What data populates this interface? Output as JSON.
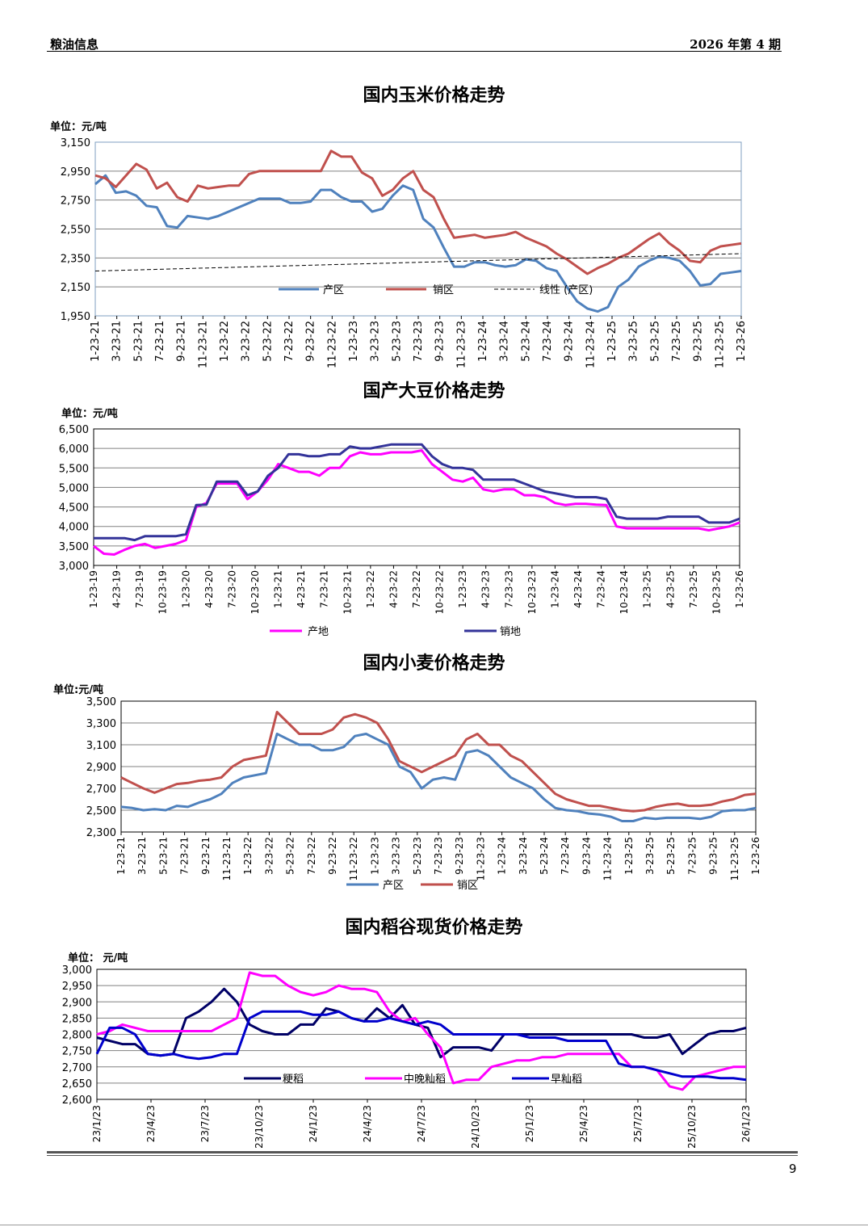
{
  "header": {
    "left": "粮油信息",
    "right": "2026 年第 4 期"
  },
  "page_number": "9",
  "chart_data": [
    {
      "type": "line",
      "title": "国内玉米价格走势",
      "unit": "单位：元/吨",
      "ylim": [
        1950,
        3150
      ],
      "yticks": [
        "3,150",
        "2,950",
        "2,750",
        "2,550",
        "2,350",
        "2,150",
        "1,950"
      ],
      "x_ticks": [
        "1-23-21",
        "3-23-21",
        "5-23-21",
        "7-23-21",
        "9-23-21",
        "11-23-21",
        "1-23-22",
        "3-23-22",
        "5-23-22",
        "7-23-22",
        "9-23-22",
        "11-23-22",
        "1-23-23",
        "3-23-23",
        "5-23-23",
        "7-23-23",
        "9-23-23",
        "11-23-23",
        "1-23-24",
        "3-23-24",
        "5-23-24",
        "7-23-24",
        "9-23-24",
        "11-23-24",
        "1-23-25",
        "3-23-25",
        "5-23-25",
        "7-23-25",
        "9-23-25",
        "11-23-25",
        "1-23-26"
      ],
      "series": [
        {
          "name": "产区",
          "color": "#4f81bd",
          "values": [
            2860,
            2920,
            2800,
            2810,
            2780,
            2710,
            2700,
            2570,
            2560,
            2640,
            2630,
            2620,
            2640,
            2670,
            2700,
            2730,
            2760,
            2760,
            2760,
            2730,
            2730,
            2740,
            2820,
            2820,
            2770,
            2740,
            2740,
            2670,
            2690,
            2780,
            2850,
            2820,
            2620,
            2560,
            2420,
            2290,
            2290,
            2320,
            2320,
            2300,
            2290,
            2300,
            2340,
            2330,
            2280,
            2260,
            2150,
            2050,
            2000,
            1980,
            2010,
            2150,
            2200,
            2290,
            2330,
            2360,
            2350,
            2330,
            2260,
            2160,
            2170,
            2240,
            2250,
            2260
          ]
        },
        {
          "name": "销区",
          "color": "#c0504d",
          "values": [
            2920,
            2900,
            2840,
            2920,
            3000,
            2960,
            2830,
            2870,
            2770,
            2740,
            2850,
            2830,
            2840,
            2850,
            2850,
            2930,
            2950,
            2950,
            2950,
            2950,
            2950,
            2950,
            2950,
            3090,
            3050,
            3050,
            2940,
            2900,
            2780,
            2820,
            2900,
            2950,
            2820,
            2770,
            2620,
            2490,
            2500,
            2510,
            2490,
            2500,
            2510,
            2530,
            2490,
            2460,
            2430,
            2380,
            2340,
            2290,
            2240,
            2280,
            2310,
            2350,
            2380,
            2430,
            2480,
            2520,
            2450,
            2400,
            2330,
            2320,
            2400,
            2430,
            2440,
            2450
          ]
        },
        {
          "name": "线性 (产区)",
          "color": "#000000",
          "dashed": true,
          "values": [
            2260,
            2380
          ]
        }
      ]
    },
    {
      "type": "line",
      "title": "国产大豆价格走势",
      "unit": "单位：元/吨",
      "ylim": [
        3000,
        6500
      ],
      "yticks": [
        "6,500",
        "6,000",
        "5,500",
        "5,000",
        "4,500",
        "4,000",
        "3,500",
        "3,000"
      ],
      "x_ticks": [
        "1-23-19",
        "4-23-19",
        "7-23-19",
        "10-23-19",
        "1-23-20",
        "4-23-20",
        "7-23-20",
        "10-23-20",
        "1-23-21",
        "4-23-21",
        "7-23-21",
        "10-23-21",
        "1-23-22",
        "4-23-22",
        "7-23-22",
        "10-23-22",
        "1-23-23",
        "4-23-23",
        "7-23-23",
        "10-23-23",
        "1-23-24",
        "4-23-24",
        "7-23-24",
        "10-23-24",
        "1-23-25",
        "4-23-25",
        "7-23-25",
        "10-23-25",
        "1-23-26"
      ],
      "series": [
        {
          "name": "产地",
          "color": "#ff00ff",
          "values": [
            3500,
            3300,
            3280,
            3400,
            3500,
            3550,
            3450,
            3500,
            3550,
            3650,
            4500,
            4600,
            5100,
            5100,
            5100,
            4700,
            4900,
            5200,
            5600,
            5500,
            5400,
            5400,
            5300,
            5500,
            5500,
            5800,
            5900,
            5850,
            5850,
            5900,
            5900,
            5900,
            5950,
            5600,
            5400,
            5200,
            5150,
            5250,
            4950,
            4900,
            4950,
            4950,
            4800,
            4800,
            4750,
            4600,
            4550,
            4580,
            4580,
            4560,
            4550,
            4000,
            3950,
            3950,
            3950,
            3950,
            3950,
            3950,
            3950,
            3950,
            3900,
            3950,
            4000,
            4100
          ]
        },
        {
          "name": "销地",
          "color": "#333399",
          "values": [
            3700,
            3700,
            3700,
            3700,
            3650,
            3750,
            3750,
            3750,
            3750,
            3800,
            4550,
            4560,
            5150,
            5150,
            5150,
            4800,
            4900,
            5300,
            5500,
            5850,
            5850,
            5800,
            5800,
            5850,
            5850,
            6050,
            6000,
            6000,
            6050,
            6100,
            6100,
            6100,
            6100,
            5800,
            5600,
            5500,
            5500,
            5450,
            5200,
            5200,
            5200,
            5200,
            5100,
            5000,
            4900,
            4850,
            4800,
            4750,
            4750,
            4750,
            4700,
            4250,
            4200,
            4200,
            4200,
            4200,
            4250,
            4250,
            4250,
            4250,
            4100,
            4100,
            4100,
            4200
          ]
        }
      ]
    },
    {
      "type": "line",
      "title": "国内小麦价格走势",
      "unit": "单位:元/吨",
      "ylim": [
        2300,
        3500
      ],
      "yticks": [
        "3,500",
        "3,300",
        "3,100",
        "2,900",
        "2,700",
        "2,500",
        "2,300"
      ],
      "x_ticks": [
        "1-23-21",
        "3-23-21",
        "5-23-21",
        "7-23-21",
        "9-23-21",
        "11-23-21",
        "1-23-22",
        "3-23-22",
        "5-23-22",
        "7-23-22",
        "9-23-22",
        "11-23-22",
        "1-23-23",
        "3-23-23",
        "5-23-23",
        "7-23-23",
        "9-23-23",
        "11-23-23",
        "1-23-24",
        "3-23-24",
        "5-23-24",
        "7-23-24",
        "9-23-24",
        "11-23-24",
        "1-23-25",
        "3-23-25",
        "5-23-25",
        "7-23-25",
        "9-23-25",
        "11-23-25",
        "1-23-26"
      ],
      "series": [
        {
          "name": "产区",
          "color": "#4f81bd",
          "values": [
            2530,
            2520,
            2500,
            2510,
            2500,
            2540,
            2530,
            2570,
            2600,
            2650,
            2750,
            2800,
            2820,
            2840,
            3200,
            3150,
            3100,
            3100,
            3050,
            3050,
            3080,
            3180,
            3200,
            3150,
            3100,
            2900,
            2850,
            2700,
            2780,
            2800,
            2780,
            3030,
            3050,
            3000,
            2900,
            2800,
            2750,
            2700,
            2600,
            2520,
            2500,
            2490,
            2470,
            2460,
            2440,
            2400,
            2400,
            2430,
            2420,
            2430,
            2430,
            2430,
            2420,
            2440,
            2490,
            2500,
            2500,
            2520
          ]
        },
        {
          "name": "销区",
          "color": "#c0504d",
          "values": [
            2800,
            2750,
            2700,
            2660,
            2700,
            2740,
            2750,
            2770,
            2780,
            2800,
            2900,
            2960,
            2980,
            3000,
            3400,
            3300,
            3200,
            3200,
            3200,
            3240,
            3350,
            3380,
            3350,
            3300,
            3150,
            2950,
            2900,
            2850,
            2900,
            2950,
            3000,
            3150,
            3200,
            3100,
            3100,
            3000,
            2950,
            2850,
            2750,
            2650,
            2600,
            2570,
            2540,
            2540,
            2520,
            2500,
            2490,
            2500,
            2530,
            2550,
            2560,
            2540,
            2540,
            2550,
            2580,
            2600,
            2640,
            2650
          ]
        }
      ]
    },
    {
      "type": "line",
      "title": "国内稻谷现货价格走势",
      "unit": "单位： 元/吨",
      "ylim": [
        2600,
        3000
      ],
      "yticks": [
        "3,000",
        "2,950",
        "2,900",
        "2,850",
        "2,800",
        "2,750",
        "2,700",
        "2,650",
        "2,600"
      ],
      "x_ticks": [
        "23/1/23",
        "23/4/23",
        "23/7/23",
        "23/10/23",
        "24/1/23",
        "24/4/23",
        "24/7/23",
        "24/10/23",
        "25/1/23",
        "25/4/23",
        "25/7/23",
        "25/10/23",
        "26/1/23"
      ],
      "series": [
        {
          "name": "粳稻",
          "color": "#000066",
          "values": [
            2790,
            2780,
            2770,
            2770,
            2740,
            2735,
            2740,
            2850,
            2870,
            2900,
            2940,
            2900,
            2830,
            2810,
            2800,
            2800,
            2830,
            2830,
            2880,
            2870,
            2850,
            2840,
            2880,
            2850,
            2890,
            2830,
            2820,
            2730,
            2760,
            2760,
            2760,
            2750,
            2800,
            2800,
            2800,
            2800,
            2800,
            2800,
            2800,
            2800,
            2800,
            2800,
            2800,
            2790,
            2790,
            2800,
            2740,
            2770,
            2800,
            2810,
            2810,
            2820
          ]
        },
        {
          "name": "中晚籼稻",
          "color": "#ff00ff",
          "values": [
            2800,
            2810,
            2830,
            2820,
            2810,
            2810,
            2810,
            2810,
            2810,
            2810,
            2830,
            2850,
            2990,
            2980,
            2980,
            2950,
            2930,
            2920,
            2930,
            2950,
            2940,
            2940,
            2930,
            2870,
            2840,
            2850,
            2800,
            2760,
            2650,
            2660,
            2660,
            2700,
            2710,
            2720,
            2720,
            2730,
            2730,
            2740,
            2740,
            2740,
            2740,
            2740,
            2700,
            2700,
            2690,
            2640,
            2630,
            2670,
            2680,
            2690,
            2700,
            2700
          ]
        },
        {
          "name": "早籼稻",
          "color": "#0000cc",
          "values": [
            2740,
            2820,
            2820,
            2800,
            2740,
            2735,
            2740,
            2730,
            2725,
            2730,
            2740,
            2740,
            2850,
            2870,
            2870,
            2870,
            2870,
            2860,
            2860,
            2870,
            2850,
            2840,
            2840,
            2850,
            2840,
            2830,
            2840,
            2830,
            2800,
            2800,
            2800,
            2800,
            2800,
            2800,
            2790,
            2790,
            2790,
            2780,
            2780,
            2780,
            2780,
            2710,
            2700,
            2700,
            2690,
            2680,
            2670,
            2670,
            2670,
            2665,
            2665,
            2660
          ]
        }
      ]
    }
  ]
}
